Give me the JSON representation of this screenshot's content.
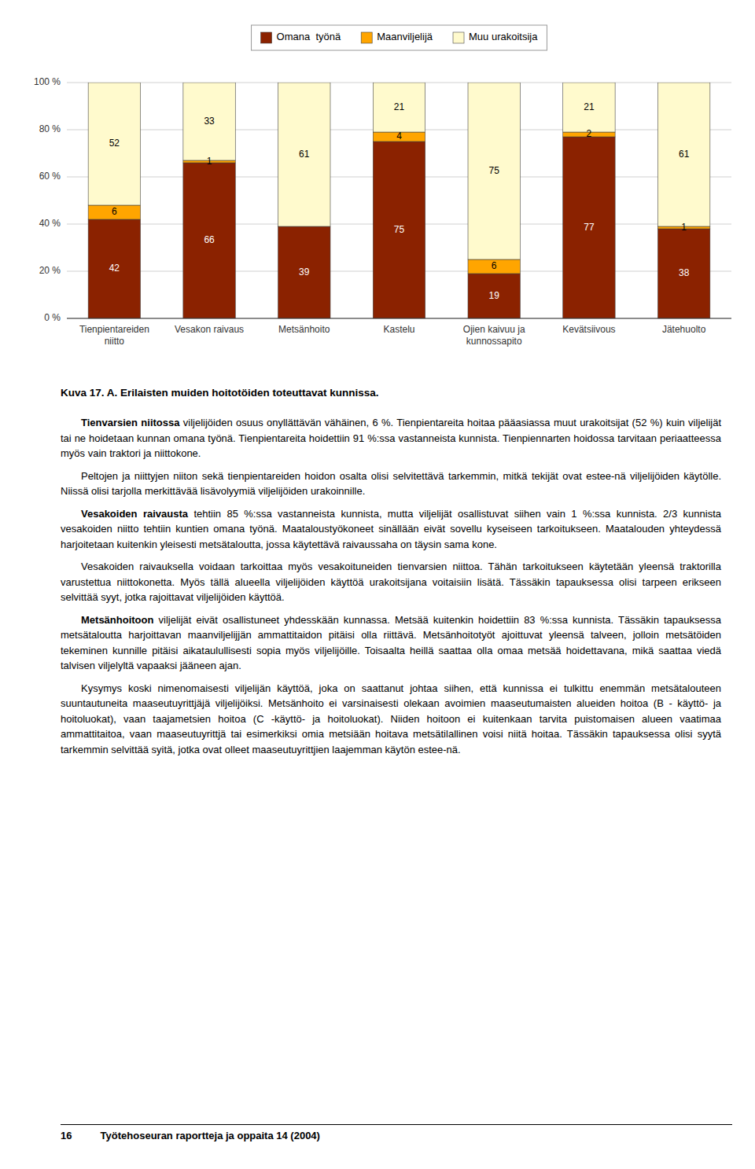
{
  "chart_data": {
    "type": "bar",
    "stacked": true,
    "categories": [
      "Tienpientareiden\nniitto",
      "Vesakon raivaus",
      "Metsänhoito",
      "Kastelu",
      "Ojien kaivuu ja\nkunnossapito",
      "Kevätsiivous",
      "Jätehuolto"
    ],
    "series": [
      {
        "name": "Omana  työnä",
        "color": "#8B2200",
        "values": [
          42,
          66,
          39,
          75,
          19,
          77,
          38
        ]
      },
      {
        "name": "Maanviljelijä",
        "color": "#FFA500",
        "values": [
          6,
          1,
          0,
          4,
          6,
          2,
          1
        ]
      },
      {
        "name": "Muu urakoitsija",
        "color": "#FFFACD",
        "values": [
          52,
          33,
          61,
          21,
          75,
          21,
          61
        ]
      }
    ],
    "ylim": [
      0,
      100
    ],
    "yticks": [
      {
        "value": 0,
        "label": "0 %"
      },
      {
        "value": 20,
        "label": "20 %"
      },
      {
        "value": 40,
        "label": "40 %"
      },
      {
        "value": 60,
        "label": "60 %"
      },
      {
        "value": 80,
        "label": "80 %"
      },
      {
        "value": 100,
        "label": "100 %"
      }
    ],
    "grid": true,
    "data_labels": true,
    "legend": "top"
  },
  "caption": "Kuva 17. A. Erilaisten muiden hoitotöiden toteuttavat kunnissa.",
  "paragraphs": [
    {
      "bold": "Tienvarsien niitossa",
      "text": " viljelijöiden osuus onyllättävän vähäinen, 6 %. Tienpientareita hoitaa pääasiassa muut urakoitsijat (52 %) kuin viljelijät tai ne hoidetaan kunnan omana työnä. Tienpientareita hoidettiin 91 %:ssa vastanneista kunnista. Tienpiennarten hoidossa tarvitaan periaatteessa myös vain traktori ja niittokone."
    },
    {
      "text": "Peltojen ja niittyjen niiton sekä tienpientareiden hoidon osalta olisi selvitettävä tarkemmin, mitkä tekijät ovat estee-nä viljelijöiden käytölle. Niissä olisi tarjolla merkittävää lisävolyymiä viljelijöiden urakoinnille."
    },
    {
      "bold": "Vesakoiden raivausta",
      "text": " tehtiin 85 %:ssa vastanneista kunnista, mutta viljelijät osallistuvat siihen vain 1 %:ssa kunnista. 2/3 kunnista vesakoiden niitto tehtiin kuntien omana työnä. Maataloustyökoneet sinällään eivät sovellu kyseiseen tarkoitukseen. Maatalouden yhteydessä harjoitetaan kuitenkin yleisesti metsätaloutta, jossa käytettävä raivaussaha on täysin sama kone."
    },
    {
      "text": "Vesakoiden raivauksella voidaan tarkoittaa myös vesakoituneiden tienvarsien niittoa. Tähän tarkoitukseen käytetään yleensä traktorilla varustettua niittokonetta. Myös tällä alueella viljelijöiden käyttöä urakoitsijana voitaisiin lisätä. Tässäkin tapauksessa olisi tarpeen erikseen selvittää syyt, jotka rajoittavat viljelijöiden käyttöä."
    },
    {
      "bold": "Metsänhoitoon",
      "text": " viljelijät eivät osallistuneet yhdesskään kunnassa. Metsää kuitenkin hoidettiin 83 %:ssa kunnista. Tässäkin tapauksessa metsätaloutta harjoittavan maanviljelijjän ammattitaidon pitäisi olla riittävä. Metsänhoitotyöt ajoittuvat yleensä talveen, jolloin metsätöiden tekeminen kunnille pitäisi aikataulullisesti sopia myös viljelijöille. Toisaalta heillä saattaa olla omaa metsää hoidettavana, mikä saattaa viedä talvisen viljelyltä vapaaksi jääneen ajan."
    },
    {
      "text": "Kysymys koski nimenomaisesti viljelijän käyttöä, joka on saattanut johtaa siihen, että kunnissa ei tulkittu enemmän metsätalouteen suuntautuneita maaseutuyrittjäjä viljelijöiksi. Metsänhoito ei varsinaisesti olekaan avoimien maaseutumaisten alueiden hoitoa (B - käyttö- ja hoitoluokat), vaan taajametsien hoitoa (C -käyttö- ja hoitoluokat). Niiden hoitoon ei kuitenkaan tarvita puistomaisen alueen vaatimaa ammattitaitoa, vaan maaseutuyrittjä tai esimerkiksi omia metsiään hoitava metsätilallinen voisi niitä hoitaa. Tässäkin tapauksessa olisi syytä tarkemmin selvittää syitä, jotka ovat olleet maaseutuyrittjien laajemman käytön estee-nä."
    }
  ],
  "footer": "16          Työtehoseuran raportteja ja oppaita 14 (2004)"
}
